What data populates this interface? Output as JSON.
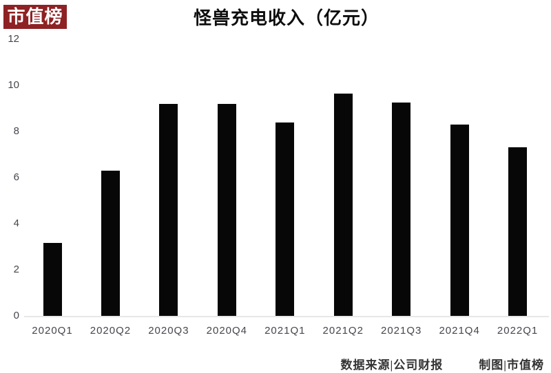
{
  "logo": {
    "text": "市值榜",
    "bg_color": "#8e2123",
    "text_color": "#ffffff"
  },
  "chart_data": {
    "type": "bar",
    "title": "怪兽充电收入（亿元）",
    "categories": [
      "2020Q1",
      "2020Q2",
      "2020Q3",
      "2020Q4",
      "2021Q1",
      "2021Q2",
      "2021Q3",
      "2021Q4",
      "2022Q1"
    ],
    "values": [
      3.15,
      6.3,
      9.2,
      9.2,
      8.4,
      9.65,
      9.25,
      8.3,
      7.3
    ],
    "xlabel": "",
    "ylabel": "",
    "ylim": [
      0,
      12
    ],
    "yticks": [
      0,
      2,
      4,
      6,
      8,
      10,
      12
    ],
    "grid": false,
    "legend": "none",
    "bar_color": "#070707",
    "axis_line_color": "#e7e7e7",
    "tick_label_color": "#45454d"
  },
  "footer": {
    "source": "数据来源|公司财报",
    "credit": "制图|市值榜"
  }
}
